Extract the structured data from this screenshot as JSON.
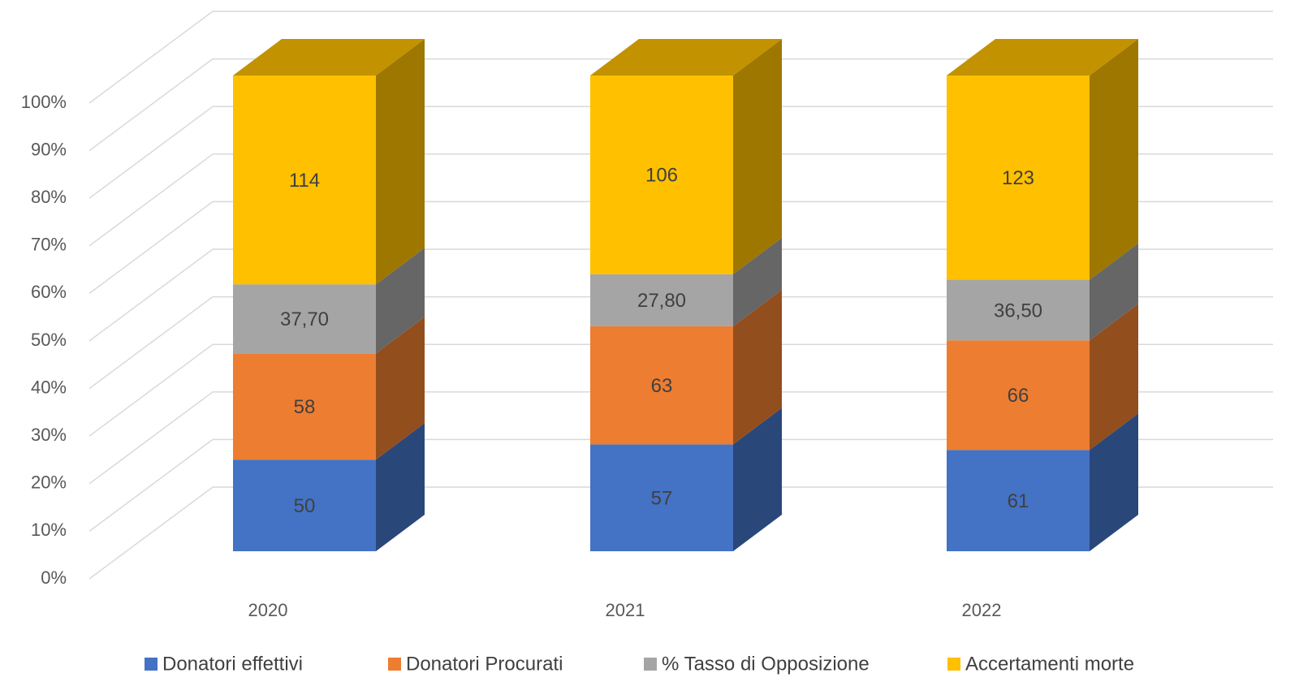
{
  "chart_data": {
    "type": "bar",
    "stacked": "percent",
    "categories": [
      "2020",
      "2021",
      "2022"
    ],
    "series": [
      {
        "name": "Donatori effettivi",
        "color": "#4472c4",
        "values": [
          50,
          57,
          61
        ]
      },
      {
        "name": "Donatori Procurati",
        "color": "#ed7d31",
        "values": [
          58,
          63,
          66
        ]
      },
      {
        "name": "% Tasso di Opposizione",
        "color": "#a5a5a5",
        "values": [
          37.7,
          27.8,
          36.5
        ],
        "value_labels": [
          "37,70",
          "27,80",
          "36,50"
        ]
      },
      {
        "name": "Accertamenti morte",
        "color": "#ffc000",
        "values": [
          114,
          106,
          123
        ]
      }
    ],
    "ylim": [
      0,
      100
    ],
    "yticks": [
      {
        "value": 0,
        "label": "0%"
      },
      {
        "value": 10,
        "label": "10%"
      },
      {
        "value": 20,
        "label": "20%"
      },
      {
        "value": 30,
        "label": "30%"
      },
      {
        "value": 40,
        "label": "40%"
      },
      {
        "value": 50,
        "label": "50%"
      },
      {
        "value": 60,
        "label": "60%"
      },
      {
        "value": 70,
        "label": "70%"
      },
      {
        "value": 80,
        "label": "80%"
      },
      {
        "value": 90,
        "label": "90%"
      },
      {
        "value": 100,
        "label": "100%"
      }
    ],
    "grid": true,
    "legend": "bottom"
  }
}
